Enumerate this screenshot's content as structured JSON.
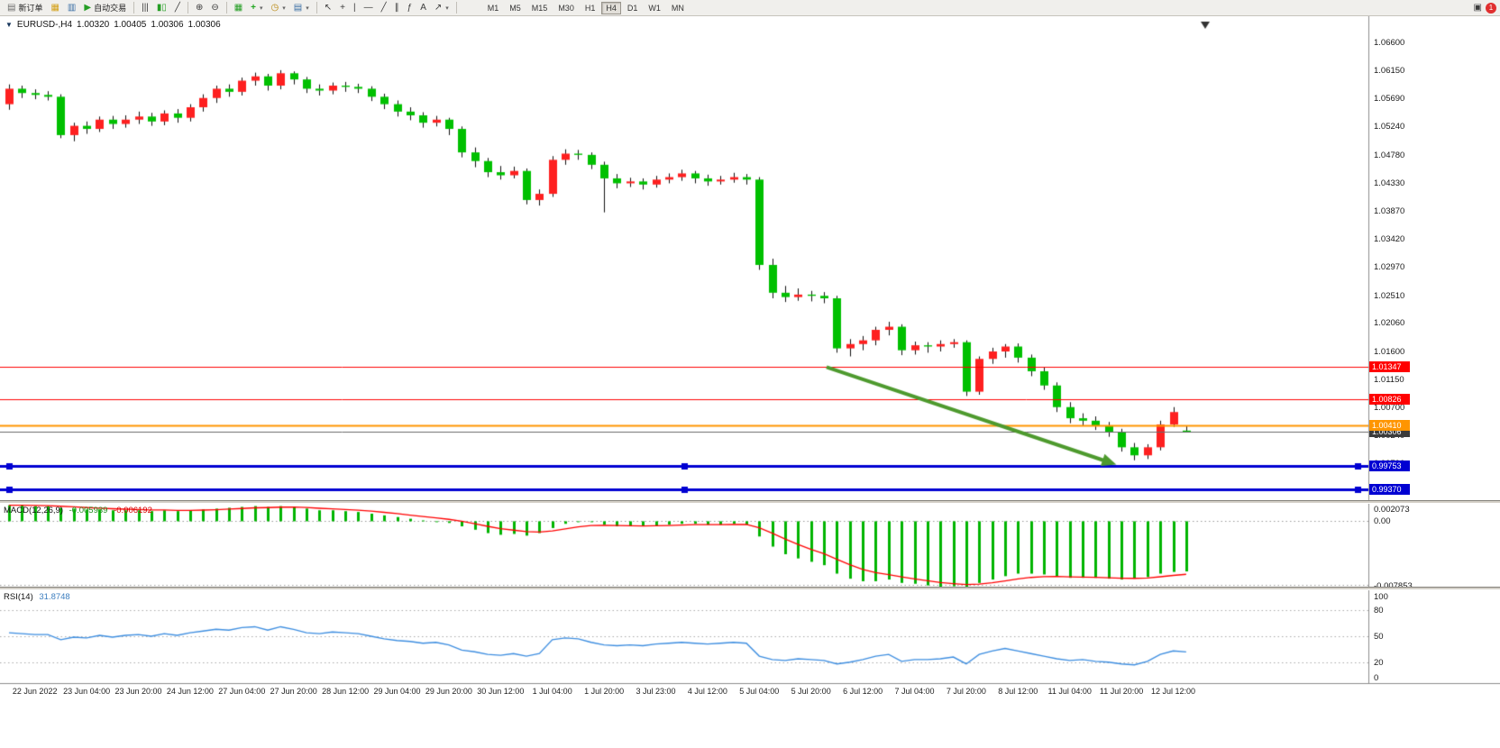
{
  "toolbar": {
    "new_order_label": "新订单",
    "autotrading_label": "自动交易",
    "timeframes": [
      "M1",
      "M5",
      "M15",
      "M30",
      "H1",
      "H4",
      "D1",
      "W1",
      "MN"
    ],
    "active_timeframe": "H4",
    "notification_badge": "1",
    "icon_glyphs": {
      "new_order": "▤",
      "market_watch": "▦",
      "terminal": "▥",
      "autotrading": "▶",
      "bar_chart": "|||",
      "candle_chart": "▮▯",
      "line_chart": "╱",
      "zoom_in": "⊕",
      "zoom_out": "⊖",
      "tile_windows": "▦",
      "indicators": "+",
      "periods": "◷",
      "templates": "▤",
      "cursor": "↖",
      "crosshair": "+",
      "vertical_line": "|",
      "horizontal_line": "—",
      "trendline": "╱",
      "channel": "∥",
      "fibonacci": "ƒ",
      "text": "A",
      "arrows": "↗",
      "dropdown": "▾",
      "windows": "▣"
    }
  },
  "chart_header": {
    "title": "EURUSD-,H4",
    "open": "1.00320",
    "high": "1.00405",
    "low": "1.00306",
    "close": "1.00306"
  },
  "indicators": {
    "macd": {
      "label": "MACD(12,26,9)",
      "value_main": "-0.005939",
      "value_signal": "-0.006192",
      "axis_labels": [
        {
          "text": "0.002073",
          "value": 0.002073
        },
        {
          "text": "0.00",
          "value": 0
        },
        {
          "text": "-0.007853",
          "value": -0.007853
        }
      ]
    },
    "rsi": {
      "label": "RSI(14)",
      "value": "31.8748",
      "axis_labels": [
        {
          "text": "100",
          "value": 100
        },
        {
          "text": "80",
          "value": 80
        },
        {
          "text": "50",
          "value": 50
        },
        {
          "text": "20",
          "value": 20
        },
        {
          "text": "0",
          "value": 0
        }
      ]
    }
  },
  "chart_data": {
    "type": "candlestick",
    "symbol": "EURUSD-",
    "timeframe": "H4",
    "ohlc_current": {
      "open": 1.0032,
      "high": 1.00405,
      "low": 1.00306,
      "close": 1.00306
    },
    "colors": {
      "up": "#fe2020",
      "down": "#00c000",
      "wick": "#111111",
      "macd_histogram": "#00b400",
      "macd_signal": "#ff0000",
      "rsi_line": "#3e8ee0",
      "arrow": "#4e9a2e"
    },
    "price_axis_ticks": [
      "1.06600",
      "1.06150",
      "1.05690",
      "1.05240",
      "1.04780",
      "1.04330",
      "1.03870",
      "1.03420",
      "1.02970",
      "1.02510",
      "1.02060",
      "1.01600",
      "1.01150",
      "1.00700",
      "1.00240",
      "0.99790"
    ],
    "candles": [
      [
        1.056,
        1.0592,
        1.0551,
        1.0585
      ],
      [
        1.0585,
        1.059,
        1.057,
        1.0578
      ],
      [
        1.0578,
        1.0584,
        1.0568,
        1.0575
      ],
      [
        1.0575,
        1.0581,
        1.0566,
        1.0572
      ],
      [
        1.0572,
        1.0576,
        1.0505,
        1.051
      ],
      [
        1.051,
        1.053,
        1.05,
        1.0525
      ],
      [
        1.0525,
        1.0532,
        1.0512,
        1.052
      ],
      [
        1.052,
        1.054,
        1.0515,
        1.0535
      ],
      [
        1.0535,
        1.0541,
        1.052,
        1.0528
      ],
      [
        1.0528,
        1.0542,
        1.0522,
        1.0535
      ],
      [
        1.0535,
        1.0548,
        1.0528,
        1.054
      ],
      [
        1.054,
        1.0546,
        1.0525,
        1.0532
      ],
      [
        1.0532,
        1.055,
        1.0526,
        1.0545
      ],
      [
        1.0545,
        1.0552,
        1.053,
        1.0538
      ],
      [
        1.0538,
        1.056,
        1.0532,
        1.0555
      ],
      [
        1.0555,
        1.0576,
        1.0548,
        1.057
      ],
      [
        1.057,
        1.059,
        1.0562,
        1.0585
      ],
      [
        1.0585,
        1.0592,
        1.0572,
        1.058
      ],
      [
        1.058,
        1.0603,
        1.0574,
        1.0598
      ],
      [
        1.0598,
        1.0611,
        1.059,
        1.0605
      ],
      [
        1.0605,
        1.0609,
        1.0582,
        1.059
      ],
      [
        1.059,
        1.0615,
        1.0584,
        1.061
      ],
      [
        1.061,
        1.0613,
        1.0592,
        1.06
      ],
      [
        1.06,
        1.0604,
        1.0578,
        1.0585
      ],
      [
        1.0585,
        1.0592,
        1.0574,
        1.0582
      ],
      [
        1.0582,
        1.0595,
        1.0576,
        1.059
      ],
      [
        1.059,
        1.0596,
        1.058,
        1.0588
      ],
      [
        1.0588,
        1.0593,
        1.0578,
        1.0585
      ],
      [
        1.0585,
        1.0589,
        1.0565,
        1.0572
      ],
      [
        1.0572,
        1.0577,
        1.0552,
        1.056
      ],
      [
        1.056,
        1.0566,
        1.054,
        1.0548
      ],
      [
        1.0548,
        1.0555,
        1.0534,
        1.0542
      ],
      [
        1.0542,
        1.0547,
        1.0522,
        1.053
      ],
      [
        1.053,
        1.0541,
        1.0524,
        1.0535
      ],
      [
        1.0535,
        1.0538,
        1.051,
        1.052
      ],
      [
        1.052,
        1.0524,
        1.0474,
        1.0482
      ],
      [
        1.0482,
        1.049,
        1.0458,
        1.0468
      ],
      [
        1.0468,
        1.0473,
        1.0442,
        1.045
      ],
      [
        1.045,
        1.046,
        1.0438,
        1.0445
      ],
      [
        1.0445,
        1.0459,
        1.044,
        1.0452
      ],
      [
        1.0452,
        1.0456,
        1.0398,
        1.0405
      ],
      [
        1.0405,
        1.0422,
        1.0396,
        1.0415
      ],
      [
        1.0415,
        1.0476,
        1.041,
        1.047
      ],
      [
        1.047,
        1.0487,
        1.0462,
        1.048
      ],
      [
        1.048,
        1.0486,
        1.047,
        1.0478
      ],
      [
        1.0478,
        1.0482,
        1.0455,
        1.0462
      ],
      [
        1.0462,
        1.0467,
        1.0385,
        1.044
      ],
      [
        1.044,
        1.0447,
        1.0424,
        1.0432
      ],
      [
        1.0432,
        1.0441,
        1.0426,
        1.0435
      ],
      [
        1.0435,
        1.044,
        1.0422,
        1.043
      ],
      [
        1.043,
        1.0444,
        1.0425,
        1.0438
      ],
      [
        1.0438,
        1.0448,
        1.0432,
        1.0442
      ],
      [
        1.0442,
        1.0454,
        1.0436,
        1.0448
      ],
      [
        1.0448,
        1.0452,
        1.0432,
        1.044
      ],
      [
        1.044,
        1.0446,
        1.0428,
        1.0435
      ],
      [
        1.0435,
        1.0444,
        1.043,
        1.0438
      ],
      [
        1.0438,
        1.0449,
        1.0433,
        1.0442
      ],
      [
        1.0442,
        1.0447,
        1.043,
        1.0438
      ],
      [
        1.0438,
        1.0442,
        1.0292,
        1.03
      ],
      [
        1.03,
        1.031,
        1.0246,
        1.0255
      ],
      [
        1.0255,
        1.0266,
        1.024,
        1.0248
      ],
      [
        1.0248,
        1.0262,
        1.0242,
        1.0252
      ],
      [
        1.0252,
        1.0258,
        1.0241,
        1.025
      ],
      [
        1.025,
        1.0256,
        1.0238,
        1.0246
      ],
      [
        1.0246,
        1.025,
        1.0158,
        1.0165
      ],
      [
        1.0165,
        1.018,
        1.0152,
        1.0172
      ],
      [
        1.0172,
        1.0185,
        1.0162,
        1.0178
      ],
      [
        1.0178,
        1.02,
        1.017,
        1.0195
      ],
      [
        1.0195,
        1.0208,
        1.0186,
        1.02
      ],
      [
        1.02,
        1.0204,
        1.0154,
        1.0162
      ],
      [
        1.0162,
        1.0176,
        1.0155,
        1.017
      ],
      [
        1.017,
        1.0175,
        1.0158,
        1.0168
      ],
      [
        1.0168,
        1.0178,
        1.016,
        1.0172
      ],
      [
        1.0172,
        1.018,
        1.0166,
        1.0175
      ],
      [
        1.0175,
        1.0178,
        1.0088,
        1.0095
      ],
      [
        1.0095,
        1.0152,
        1.009,
        1.0148
      ],
      [
        1.0148,
        1.0166,
        1.014,
        1.016
      ],
      [
        1.016,
        1.0172,
        1.015,
        1.0168
      ],
      [
        1.0168,
        1.0173,
        1.0142,
        1.015
      ],
      [
        1.015,
        1.0155,
        1.012,
        1.0128
      ],
      [
        1.0128,
        1.0134,
        1.0098,
        1.0105
      ],
      [
        1.0105,
        1.011,
        1.0062,
        1.007
      ],
      [
        1.007,
        1.0078,
        1.0044,
        1.0052
      ],
      [
        1.0052,
        1.006,
        1.004,
        1.0048
      ],
      [
        1.0048,
        1.0055,
        1.0033,
        1.004
      ],
      [
        1.004,
        1.0046,
        1.0022,
        1.003
      ],
      [
        1.003,
        1.0035,
        0.9998,
        1.0005
      ],
      [
        1.0005,
        1.0012,
        0.9984,
        0.9992
      ],
      [
        0.9992,
        1.001,
        0.9986,
        1.0005
      ],
      [
        1.0005,
        1.0048,
        1.0,
        1.0042
      ],
      [
        1.0042,
        1.007,
        1.0038,
        1.0062
      ],
      [
        1.0032,
        1.00405,
        1.00306,
        1.00306
      ]
    ],
    "macd": {
      "params": "12,26,9",
      "current_main": -0.005939,
      "current_signal": -0.006192,
      "scale": {
        "max": 0.002073,
        "zero": 0,
        "min": -0.007853
      },
      "histogram": [
        0.0019,
        0.0019,
        0.0018,
        0.0018,
        0.0016,
        0.0015,
        0.0014,
        0.0014,
        0.0013,
        0.0013,
        0.0013,
        0.0012,
        0.0013,
        0.0012,
        0.0013,
        0.0014,
        0.0015,
        0.0016,
        0.0017,
        0.0018,
        0.0017,
        0.0018,
        0.0017,
        0.0015,
        0.0013,
        0.0013,
        0.0012,
        0.0011,
        0.0009,
        0.0007,
        0.0005,
        0.0003,
        0.0001,
        0.0,
        -0.0002,
        -0.0006,
        -0.001,
        -0.0014,
        -0.0016,
        -0.0015,
        -0.0017,
        -0.0014,
        -0.0008,
        -0.0003,
        0.0,
        -0.0001,
        -0.0004,
        -0.0006,
        -0.0006,
        -0.0006,
        -0.0005,
        -0.0004,
        -0.0003,
        -0.0003,
        -0.0004,
        -0.0004,
        -0.0003,
        -0.0004,
        -0.0018,
        -0.003,
        -0.0039,
        -0.0044,
        -0.0048,
        -0.0052,
        -0.0062,
        -0.0068,
        -0.0071,
        -0.0071,
        -0.0069,
        -0.0073,
        -0.0074,
        -0.0076,
        -0.0078,
        -0.0077,
        -0.0078,
        -0.0073,
        -0.0069,
        -0.0065,
        -0.0062,
        -0.0062,
        -0.0063,
        -0.0065,
        -0.0067,
        -0.0067,
        -0.0067,
        -0.0068,
        -0.0069,
        -0.0068,
        -0.0066,
        -0.0062,
        -0.006,
        -0.005939
      ]
    },
    "rsi": {
      "period": 14,
      "current": 31.8748,
      "levels": [
        80,
        50,
        20
      ],
      "scale": [
        0,
        100
      ],
      "values": [
        54,
        53,
        52,
        52,
        46,
        49,
        48,
        51,
        49,
        51,
        52,
        50,
        53,
        51,
        54,
        56,
        58,
        57,
        60,
        61,
        57,
        61,
        58,
        54,
        53,
        55,
        54,
        53,
        50,
        47,
        45,
        44,
        42,
        43,
        40,
        34,
        32,
        29,
        28,
        30,
        27,
        30,
        46,
        48,
        47,
        43,
        40,
        39,
        40,
        39,
        41,
        42,
        43,
        42,
        41,
        42,
        43,
        42,
        27,
        23,
        22,
        24,
        23,
        22,
        18,
        20,
        23,
        27,
        29,
        21,
        23,
        23,
        24,
        26,
        18,
        29,
        33,
        36,
        33,
        30,
        27,
        24,
        22,
        23,
        21,
        20,
        18,
        17,
        21,
        29,
        33,
        31.87
      ]
    },
    "hlines": [
      {
        "price": 1.01347,
        "label": "1.01347",
        "color": "#ff0000",
        "width": 1
      },
      {
        "price": 1.00826,
        "label": "1.00826",
        "color": "#ff0000",
        "width": 1
      },
      {
        "price": 1.00306,
        "label": "1.00306",
        "color": "#6a6a6a",
        "tag_bg": "#3c3c3c",
        "width": 1
      },
      {
        "price": 1.0041,
        "label": "1.00410",
        "color": "#ff9500",
        "width": 2
      },
      {
        "price": 0.99753,
        "label": "0.99753",
        "color": "#0000d2",
        "width": 3,
        "handles": true
      },
      {
        "price": 0.9937,
        "label": "0.99370",
        "color": "#0000d2",
        "width": 3,
        "handles": true
      }
    ],
    "arrow": {
      "from_index": 63.2,
      "from_price": 1.01347,
      "to_index": 85.6,
      "to_price": 0.9977,
      "color": "#4e9a2e",
      "line_width": 4
    },
    "time_labels": [
      {
        "text": "22 Jun 2022",
        "index": 2
      },
      {
        "text": "23 Jun 04:00",
        "index": 6
      },
      {
        "text": "23 Jun 20:00",
        "index": 10
      },
      {
        "text": "24 Jun 12:00",
        "index": 14
      },
      {
        "text": "27 Jun 04:00",
        "index": 18
      },
      {
        "text": "27 Jun 20:00",
        "index": 22
      },
      {
        "text": "28 Jun 12:00",
        "index": 26
      },
      {
        "text": "29 Jun 04:00",
        "index": 30
      },
      {
        "text": "29 Jun 20:00",
        "index": 34
      },
      {
        "text": "30 Jun 12:00",
        "index": 38
      },
      {
        "text": "1 Jul 04:00",
        "index": 42
      },
      {
        "text": "1 Jul 20:00",
        "index": 46
      },
      {
        "text": "3 Jul 23:00",
        "index": 50
      },
      {
        "text": "4 Jul 12:00",
        "index": 54
      },
      {
        "text": "5 Jul 04:00",
        "index": 58
      },
      {
        "text": "5 Jul 20:00",
        "index": 62
      },
      {
        "text": "6 Jul 12:00",
        "index": 66
      },
      {
        "text": "7 Jul 04:00",
        "index": 70
      },
      {
        "text": "7 Jul 20:00",
        "index": 74
      },
      {
        "text": "8 Jul 12:00",
        "index": 78
      },
      {
        "text": "11 Jul 04:00",
        "index": 82
      },
      {
        "text": "11 Jul 20:00",
        "index": 86
      },
      {
        "text": "12 Jul 12:00",
        "index": 90
      }
    ]
  }
}
